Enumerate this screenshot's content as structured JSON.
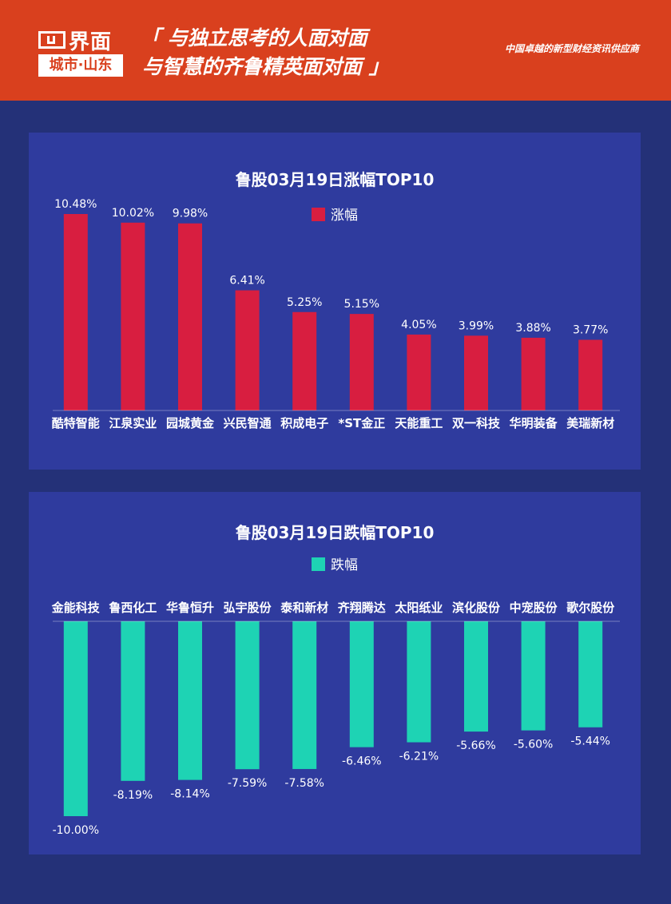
{
  "header": {
    "logo_main": "界面",
    "logo_sub": "城市·山东",
    "slogan_line1": "「 与独立思考的人面对面",
    "slogan_line2": "与智慧的齐鲁精英面对面 」",
    "tagline": "中国卓越的新型财经资讯供应商",
    "bg_color": "#d9401e"
  },
  "watermark_text": "界面城市·山东",
  "chart_data": [
    {
      "type": "bar",
      "title": "鲁股03月19日涨幅TOP10",
      "legend": [
        {
          "name": "涨幅",
          "color": "#d81e40"
        }
      ],
      "categories": [
        "酷特智能",
        "江泉实业",
        "园城黄金",
        "兴民智通",
        "积成电子",
        "*ST金正",
        "天能重工",
        "双一科技",
        "华明装备",
        "美瑞新材"
      ],
      "series": [
        {
          "name": "涨幅",
          "values": [
            10.48,
            10.02,
            9.98,
            6.41,
            5.25,
            5.15,
            4.05,
            3.99,
            3.88,
            3.77
          ]
        }
      ],
      "value_labels": [
        "10.48%",
        "10.02%",
        "9.98%",
        "6.41%",
        "5.25%",
        "5.15%",
        "4.05%",
        "3.99%",
        "3.88%",
        "3.77%"
      ],
      "ylim": [
        0,
        10.48
      ],
      "grid": false,
      "legend_position": "top-center"
    },
    {
      "type": "bar",
      "title": "鲁股03月19日跌幅TOP10",
      "legend": [
        {
          "name": "跌幅",
          "color": "#1ed3b4"
        }
      ],
      "categories": [
        "金能科技",
        "鲁西化工",
        "华鲁恒升",
        "弘宇股份",
        "泰和新材",
        "齐翔腾达",
        "太阳纸业",
        "滨化股份",
        "中宠股份",
        "歌尔股份"
      ],
      "series": [
        {
          "name": "跌幅",
          "values": [
            -10.0,
            -8.19,
            -8.14,
            -7.59,
            -7.58,
            -6.46,
            -6.21,
            -5.66,
            -5.6,
            -5.44
          ]
        }
      ],
      "value_labels": [
        "-10.00%",
        "-8.19%",
        "-8.14%",
        "-7.59%",
        "-7.58%",
        "-6.46%",
        "-6.21%",
        "-5.66%",
        "-5.60%",
        "-5.44%"
      ],
      "ylim": [
        -10.0,
        0
      ],
      "grid": false,
      "legend_position": "top-center"
    }
  ]
}
